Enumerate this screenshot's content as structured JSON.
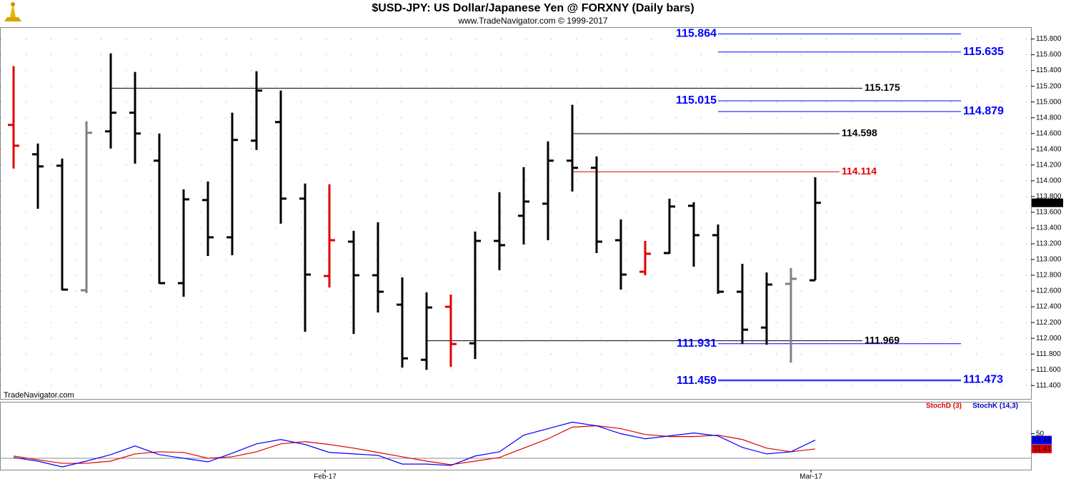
{
  "chart_data": [
    {
      "type": "ohlc",
      "title": "$USD-JPY:  US Dollar/Japanese Yen @ FORXNY  (Daily bars)",
      "subtitle": "www.TradeNavigator.com © 1999-2017",
      "watermark": "TradeNavigator.com",
      "categories": [
        null,
        null,
        null,
        null,
        null,
        null,
        null,
        null,
        null,
        null,
        null,
        null,
        null,
        "Feb-17",
        null,
        null,
        null,
        null,
        null,
        null,
        null,
        null,
        null,
        null,
        null,
        null,
        null,
        null,
        null,
        null,
        null,
        null,
        null,
        "Mar-17"
      ],
      "open": [
        114.709,
        114.336,
        114.191,
        112.609,
        114.627,
        114.864,
        114.255,
        112.7,
        113.755,
        113.282,
        114.509,
        114.745,
        113.773,
        112.791,
        113.227,
        112.8,
        112.427,
        111.727,
        112.4,
        111.936,
        113.236,
        113.555,
        113.709,
        114.255,
        114.164,
        113.245,
        112.845,
        113.082,
        113.682,
        113.309,
        112.591,
        112.136,
        112.691,
        112.736
      ],
      "high": [
        115.455,
        114.473,
        114.282,
        114.755,
        115.618,
        115.382,
        114.6,
        113.891,
        113.991,
        114.864,
        115.391,
        115.145,
        113.964,
        113.955,
        113.364,
        113.473,
        112.773,
        112.582,
        112.555,
        113.355,
        113.855,
        114.173,
        114.5,
        114.964,
        114.309,
        113.509,
        113.236,
        113.773,
        113.727,
        113.445,
        112.945,
        112.836,
        112.891,
        114.045
      ],
      "low": [
        114.155,
        113.645,
        112.609,
        112.573,
        114.409,
        114.218,
        112.691,
        112.527,
        113.045,
        113.055,
        114.391,
        113.455,
        112.082,
        112.645,
        112.055,
        112.327,
        111.627,
        111.6,
        111.636,
        111.736,
        112.864,
        113.191,
        113.245,
        113.864,
        113.082,
        112.618,
        112.8,
        113.073,
        112.909,
        112.564,
        111.927,
        111.918,
        111.691,
        112.736
      ],
      "close": [
        114.445,
        114.182,
        112.618,
        114.609,
        114.864,
        114.6,
        112.7,
        113.764,
        113.282,
        114.518,
        115.145,
        113.773,
        112.809,
        113.245,
        112.8,
        112.591,
        111.745,
        112.391,
        111.927,
        113.236,
        113.182,
        113.736,
        114.255,
        114.164,
        113.227,
        112.809,
        113.073,
        113.673,
        113.309,
        112.591,
        112.109,
        112.682,
        112.755,
        113.72
      ],
      "colors": [
        "#e00000",
        "#000000",
        "#000000",
        "#808080",
        "#000000",
        "#000000",
        "#000000",
        "#000000",
        "#000000",
        "#000000",
        "#000000",
        "#000000",
        "#000000",
        "#e00000",
        "#000000",
        "#000000",
        "#000000",
        "#000000",
        "#e00000",
        "#000000",
        "#000000",
        "#000000",
        "#000000",
        "#000000",
        "#000000",
        "#000000",
        "#e00000",
        "#000000",
        "#000000",
        "#000000",
        "#000000",
        "#000000",
        "#808080",
        "#000000"
      ],
      "ylim": [
        111.23,
        115.95
      ],
      "yticks": [
        {
          "value": 111.4,
          "label": "111.400"
        },
        {
          "value": 111.6,
          "label": "111.600"
        },
        {
          "value": 111.8,
          "label": "111.800"
        },
        {
          "value": 112.0,
          "label": "112.000"
        },
        {
          "value": 112.2,
          "label": "112.200"
        },
        {
          "value": 112.4,
          "label": "112.400"
        },
        {
          "value": 112.6,
          "label": "112.600"
        },
        {
          "value": 112.8,
          "label": "112.800"
        },
        {
          "value": 113.0,
          "label": "113.000"
        },
        {
          "value": 113.2,
          "label": "113.200"
        },
        {
          "value": 113.4,
          "label": "113.400"
        },
        {
          "value": 113.6,
          "label": "113.600"
        },
        {
          "value": 113.8,
          "label": "113.800"
        },
        {
          "value": 114.0,
          "label": "114.000"
        },
        {
          "value": 114.2,
          "label": "114.200"
        },
        {
          "value": 114.4,
          "label": "114.400"
        },
        {
          "value": 114.6,
          "label": "114.600"
        },
        {
          "value": 114.8,
          "label": "114.800"
        },
        {
          "value": 115.0,
          "label": "115.000"
        },
        {
          "value": 115.2,
          "label": "115.200"
        },
        {
          "value": 115.4,
          "label": "115.400"
        },
        {
          "value": 115.6,
          "label": "115.600"
        },
        {
          "value": 115.8,
          "label": "115.800"
        }
      ],
      "last_price": {
        "value": 113.72,
        "label": "113.720"
      },
      "levels": [
        {
          "value": 115.864,
          "label": "115.864",
          "color": "#0000ff"
        },
        {
          "value": 115.635,
          "label": "115.635",
          "color": "#0000ff"
        },
        {
          "value": 115.175,
          "label": "115.175",
          "color": "#000000"
        },
        {
          "value": 115.015,
          "label": "115.015",
          "color": "#0000ff"
        },
        {
          "value": 114.879,
          "label": "114.879",
          "color": "#0000ff"
        },
        {
          "value": 114.598,
          "label": "114.598",
          "color": "#000000"
        },
        {
          "value": 114.114,
          "label": "114.114",
          "color": "#e00000"
        },
        {
          "value": 111.969,
          "label": "111.969",
          "color": "#000000"
        },
        {
          "value": 111.931,
          "label": "111.931",
          "color": "#0000ff"
        },
        {
          "value": 111.459,
          "label": "111.459",
          "color": "#0000ff"
        },
        {
          "value": 111.473,
          "label": "111.473",
          "color": "#0000ff"
        }
      ],
      "grid": true
    },
    {
      "type": "line",
      "series": [
        {
          "name": "StochD (3)",
          "color": "#e00000",
          "values": [
            22.7,
            18.2,
            13.8,
            13.8,
            16.5,
            25.3,
            27.9,
            27.1,
            20,
            21.8,
            27.9,
            37.6,
            40.3,
            36.8,
            32.4,
            27.1,
            21.8,
            16.5,
            12.1,
            16.5,
            20.9,
            32.4,
            43.8,
            58,
            59.7,
            56.2,
            49.1,
            46.5,
            46.5,
            48.2,
            42.9,
            32.4,
            27.9,
            31.41
          ]
        },
        {
          "name": "StochK (14,3)",
          "color": "#0000ff",
          "values": [
            20.9,
            16.5,
            9.4,
            16.5,
            24.4,
            35,
            24.4,
            20,
            15.6,
            26.2,
            37.6,
            42.9,
            36.8,
            27.1,
            25.3,
            23.5,
            12.9,
            12.9,
            11.2,
            22.7,
            27.9,
            48.2,
            56.2,
            64.1,
            59.7,
            50,
            43.8,
            47.3,
            50.9,
            47.3,
            33.2,
            25.3,
            27.9,
            42.18
          ]
        }
      ],
      "ylim": [
        6,
        89
      ],
      "yticks": [
        50
      ],
      "reference_lines": [
        20
      ]
    }
  ]
}
